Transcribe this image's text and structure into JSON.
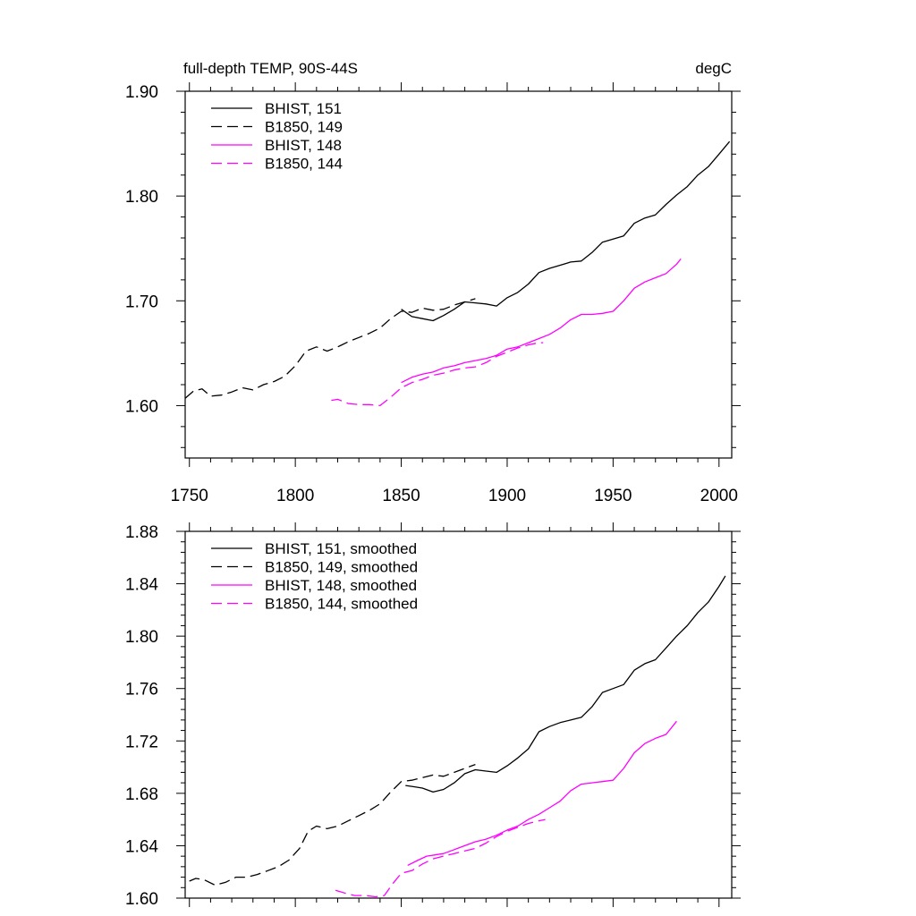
{
  "chart_data": [
    {
      "type": "line",
      "title_left": "full-depth TEMP, 90S-44S",
      "title_right": "degC",
      "xlim": [
        1748,
        2006
      ],
      "ylim": [
        1.55,
        1.9
      ],
      "xticks": [
        1750,
        1800,
        1850,
        1900,
        1950,
        2000
      ],
      "xtick_labels": [
        "1750",
        "1800",
        "1850",
        "1900",
        "1950",
        "2000"
      ],
      "yticks": [
        1.6,
        1.7,
        1.8,
        1.9
      ],
      "ytick_labels": [
        "1.60",
        "1.70",
        "1.80",
        "1.90"
      ],
      "grid": false,
      "legend_position": "top-left",
      "series": [
        {
          "name": "BHIST, 151",
          "color": "#000000",
          "dash": "solid",
          "x": [
            1850,
            1855,
            1860,
            1865,
            1870,
            1875,
            1880,
            1885,
            1890,
            1895,
            1900,
            1905,
            1910,
            1915,
            1920,
            1925,
            1930,
            1935,
            1940,
            1945,
            1950,
            1955,
            1960,
            1965,
            1970,
            1975,
            1980,
            1985,
            1990,
            1995,
            2000,
            2005
          ],
          "y": [
            1.692,
            1.685,
            1.683,
            1.681,
            1.686,
            1.692,
            1.699,
            1.698,
            1.697,
            1.695,
            1.703,
            1.708,
            1.716,
            1.727,
            1.731,
            1.734,
            1.737,
            1.738,
            1.746,
            1.756,
            1.759,
            1.762,
            1.774,
            1.779,
            1.782,
            1.792,
            1.801,
            1.809,
            1.82,
            1.828,
            1.84,
            1.852
          ]
        },
        {
          "name": "B1850, 149",
          "color": "#000000",
          "dash": "dashed",
          "x": [
            1748,
            1752,
            1756,
            1760,
            1765,
            1770,
            1775,
            1780,
            1785,
            1790,
            1795,
            1800,
            1805,
            1810,
            1815,
            1820,
            1825,
            1830,
            1835,
            1840,
            1845,
            1850,
            1855,
            1860,
            1865,
            1870,
            1875,
            1880,
            1885
          ],
          "y": [
            1.607,
            1.614,
            1.616,
            1.609,
            1.61,
            1.613,
            1.617,
            1.615,
            1.62,
            1.623,
            1.628,
            1.638,
            1.652,
            1.656,
            1.652,
            1.656,
            1.661,
            1.665,
            1.669,
            1.674,
            1.683,
            1.69,
            1.689,
            1.693,
            1.691,
            1.692,
            1.696,
            1.699,
            1.702
          ]
        },
        {
          "name": "BHIST, 148",
          "color": "#ff00ff",
          "dash": "solid",
          "x": [
            1850,
            1855,
            1860,
            1865,
            1870,
            1875,
            1880,
            1885,
            1890,
            1895,
            1900,
            1905,
            1910,
            1915,
            1920,
            1925,
            1930,
            1935,
            1940,
            1945,
            1950,
            1955,
            1960,
            1965,
            1970,
            1975,
            1980,
            1982
          ],
          "y": [
            1.622,
            1.627,
            1.63,
            1.632,
            1.636,
            1.638,
            1.641,
            1.643,
            1.645,
            1.648,
            1.654,
            1.656,
            1.66,
            1.664,
            1.668,
            1.674,
            1.682,
            1.687,
            1.687,
            1.688,
            1.69,
            1.7,
            1.712,
            1.718,
            1.722,
            1.726,
            1.735,
            1.74
          ]
        },
        {
          "name": "B1850, 144",
          "color": "#ff00ff",
          "dash": "dashed",
          "x": [
            1817,
            1820,
            1825,
            1830,
            1835,
            1840,
            1845,
            1850,
            1855,
            1860,
            1865,
            1870,
            1875,
            1880,
            1885,
            1890,
            1895,
            1900,
            1905,
            1910,
            1915,
            1917
          ],
          "y": [
            1.605,
            1.606,
            1.602,
            1.601,
            1.601,
            1.6,
            1.608,
            1.617,
            1.622,
            1.625,
            1.629,
            1.631,
            1.634,
            1.636,
            1.637,
            1.641,
            1.647,
            1.651,
            1.655,
            1.658,
            1.66,
            1.66
          ]
        }
      ]
    },
    {
      "type": "line",
      "xlim": [
        1748,
        2006
      ],
      "ylim": [
        1.6,
        1.88
      ],
      "xticks": [
        1750,
        1800,
        1850,
        1900,
        1950,
        2000
      ],
      "yticks": [
        1.6,
        1.64,
        1.68,
        1.72,
        1.76,
        1.8,
        1.84,
        1.88
      ],
      "ytick_labels": [
        "1.60",
        "1.64",
        "1.68",
        "1.72",
        "1.76",
        "1.80",
        "1.84",
        "1.88"
      ],
      "grid": false,
      "legend_position": "top-left",
      "series": [
        {
          "name": "BHIST, 151, smoothed",
          "color": "#000000",
          "dash": "solid",
          "x": [
            1852,
            1856,
            1860,
            1865,
            1870,
            1875,
            1880,
            1885,
            1890,
            1895,
            1900,
            1905,
            1910,
            1915,
            1920,
            1925,
            1930,
            1935,
            1940,
            1945,
            1950,
            1955,
            1960,
            1965,
            1970,
            1975,
            1980,
            1985,
            1990,
            1995,
            2000,
            2003
          ],
          "y": [
            1.686,
            1.685,
            1.684,
            1.681,
            1.683,
            1.688,
            1.695,
            1.698,
            1.697,
            1.696,
            1.701,
            1.707,
            1.714,
            1.727,
            1.731,
            1.734,
            1.736,
            1.738,
            1.746,
            1.757,
            1.76,
            1.763,
            1.774,
            1.779,
            1.782,
            1.791,
            1.8,
            1.808,
            1.818,
            1.826,
            1.838,
            1.846
          ]
        },
        {
          "name": "B1850, 149, smoothed",
          "color": "#000000",
          "dash": "dashed",
          "x": [
            1750,
            1753,
            1757,
            1762,
            1767,
            1772,
            1777,
            1782,
            1787,
            1792,
            1797,
            1802,
            1806,
            1810,
            1815,
            1820,
            1825,
            1830,
            1835,
            1840,
            1845,
            1850,
            1855,
            1860,
            1865,
            1870,
            1875,
            1880,
            1885
          ],
          "y": [
            1.613,
            1.615,
            1.614,
            1.61,
            1.612,
            1.616,
            1.616,
            1.618,
            1.621,
            1.624,
            1.629,
            1.638,
            1.651,
            1.655,
            1.653,
            1.655,
            1.659,
            1.663,
            1.667,
            1.672,
            1.681,
            1.689,
            1.69,
            1.692,
            1.694,
            1.693,
            1.696,
            1.699,
            1.702
          ]
        },
        {
          "name": "BHIST, 148, smoothed",
          "color": "#ff00ff",
          "dash": "solid",
          "x": [
            1853,
            1858,
            1862,
            1866,
            1870,
            1875,
            1880,
            1885,
            1890,
            1895,
            1900,
            1905,
            1910,
            1915,
            1920,
            1925,
            1930,
            1935,
            1940,
            1945,
            1950,
            1955,
            1960,
            1965,
            1970,
            1975,
            1980
          ],
          "y": [
            1.625,
            1.629,
            1.632,
            1.633,
            1.634,
            1.637,
            1.64,
            1.643,
            1.645,
            1.648,
            1.652,
            1.655,
            1.66,
            1.664,
            1.669,
            1.674,
            1.682,
            1.687,
            1.688,
            1.689,
            1.69,
            1.699,
            1.711,
            1.718,
            1.722,
            1.725,
            1.735
          ]
        },
        {
          "name": "B1850, 144, smoothed",
          "color": "#ff00ff",
          "dash": "dashed",
          "x": [
            1819,
            1823,
            1828,
            1833,
            1838,
            1842,
            1846,
            1850,
            1855,
            1860,
            1865,
            1870,
            1875,
            1880,
            1885,
            1890,
            1895,
            1900,
            1905,
            1910,
            1915,
            1918
          ],
          "y": [
            1.606,
            1.604,
            1.602,
            1.602,
            1.601,
            1.602,
            1.611,
            1.619,
            1.621,
            1.626,
            1.63,
            1.632,
            1.634,
            1.636,
            1.638,
            1.642,
            1.647,
            1.651,
            1.654,
            1.657,
            1.659,
            1.66
          ]
        }
      ]
    }
  ]
}
